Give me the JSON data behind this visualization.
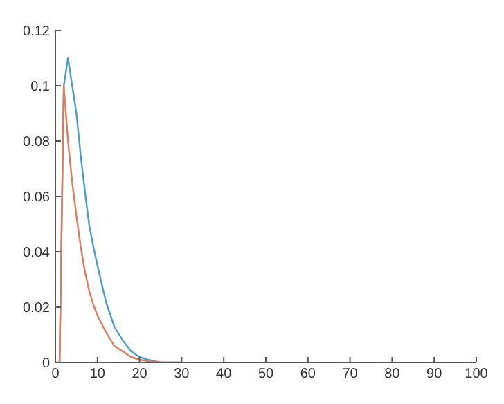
{
  "chart_data": {
    "type": "line",
    "xlim": [
      0,
      100
    ],
    "xticks": [
      0,
      10,
      20,
      30,
      40,
      50,
      60,
      70,
      80,
      90,
      100
    ],
    "ylim": [
      0,
      0.12
    ],
    "yticks": [
      0,
      0.02,
      0.04,
      0.06,
      0.08,
      0.1,
      0.12
    ],
    "grid": false,
    "marker": "none",
    "line_style": "solid",
    "series": [
      {
        "color": "#4a9ccc",
        "x": [
          1,
          2,
          3,
          4,
          5,
          6,
          7,
          8,
          9,
          10,
          12,
          14,
          16,
          18,
          20,
          22,
          25,
          30
        ],
        "values": [
          0,
          0.1,
          0.11,
          0.1,
          0.09,
          0.075,
          0.062,
          0.05,
          0.042,
          0.035,
          0.022,
          0.013,
          0.008,
          0.004,
          0.002,
          0.001,
          0,
          0
        ]
      },
      {
        "color": "#e07a5a",
        "x": [
          1,
          2,
          3,
          4,
          5,
          6,
          7,
          8,
          9,
          10,
          12,
          14,
          16,
          18,
          20,
          22,
          25,
          30
        ],
        "values": [
          0,
          0.1,
          0.08,
          0.065,
          0.053,
          0.042,
          0.033,
          0.026,
          0.021,
          0.017,
          0.011,
          0.006,
          0.004,
          0.002,
          0.001,
          0.0005,
          0,
          0
        ]
      }
    ]
  }
}
